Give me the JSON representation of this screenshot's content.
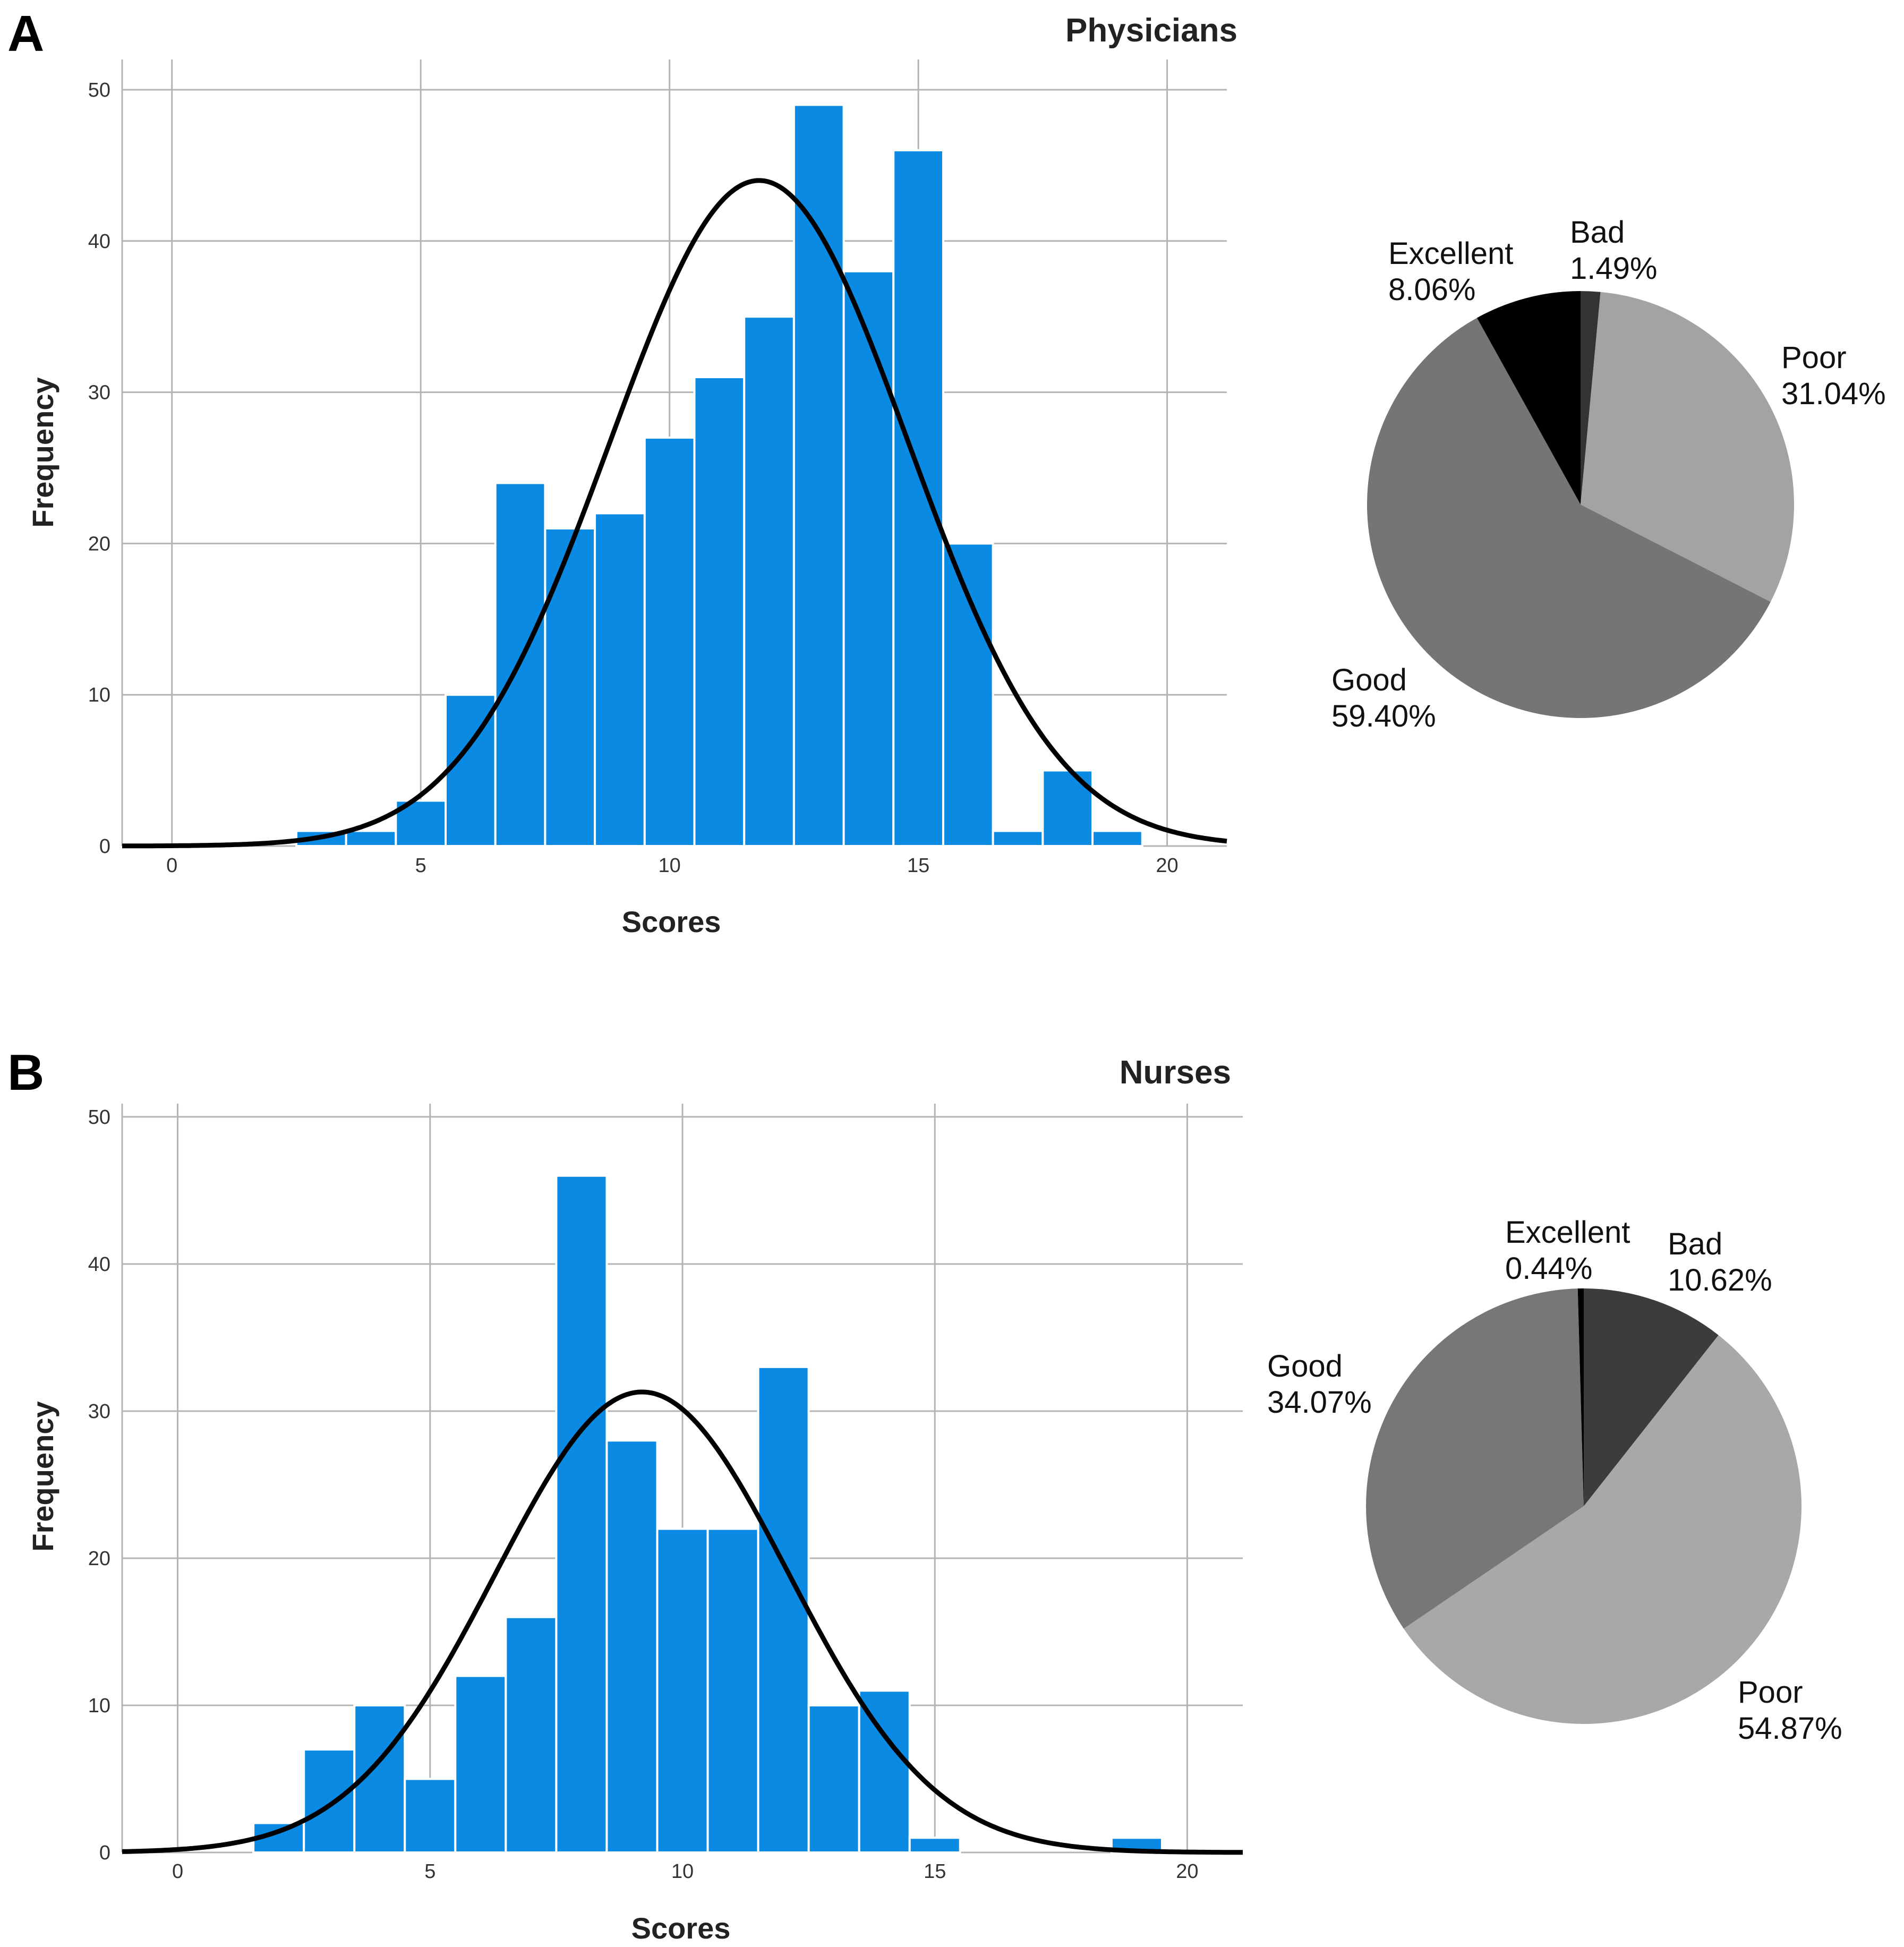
{
  "figure": {
    "panels": [
      {
        "letter": "A",
        "histogram": {
          "type": "bar",
          "title": "Physicians",
          "xlabel": "Scores",
          "ylabel": "Frequency",
          "xlim": [
            -1,
            21.2
          ],
          "ylim": [
            0,
            52
          ],
          "x_ticks": [
            0,
            5,
            10,
            15,
            20
          ],
          "y_ticks": [
            0,
            10,
            20,
            30,
            40,
            50
          ],
          "grid": true,
          "bin_width": 1,
          "bins": [
            {
              "x": 3,
              "value": 1
            },
            {
              "x": 4,
              "value": 1
            },
            {
              "x": 5,
              "value": 3
            },
            {
              "x": 6,
              "value": 10
            },
            {
              "x": 7,
              "value": 24
            },
            {
              "x": 8,
              "value": 21
            },
            {
              "x": 9,
              "value": 22
            },
            {
              "x": 10,
              "value": 27
            },
            {
              "x": 11,
              "value": 31
            },
            {
              "x": 12,
              "value": 35
            },
            {
              "x": 13,
              "value": 49
            },
            {
              "x": 14,
              "value": 38
            },
            {
              "x": 15,
              "value": 46
            },
            {
              "x": 16,
              "value": 20
            },
            {
              "x": 17,
              "value": 1
            },
            {
              "x": 18,
              "value": 5
            },
            {
              "x": 19,
              "value": 1
            }
          ],
          "normal_curve": {
            "mean": 11.8,
            "sd": 3.0,
            "peak": 44
          }
        },
        "pie": {
          "type": "pie",
          "start_angle_deg": 0,
          "slices": [
            {
              "label": "Bad",
              "percent_label": "1.49%",
              "value": 1.49,
              "color": "#333333"
            },
            {
              "label": "Poor",
              "percent_label": "31.04%",
              "value": 31.04,
              "color": "#a3a3a3"
            },
            {
              "label": "Good",
              "percent_label": "59.40%",
              "value": 59.4,
              "color": "#757575"
            },
            {
              "label": "Excellent",
              "percent_label": "8.06%",
              "value": 8.06,
              "color": "#000000"
            }
          ]
        }
      },
      {
        "letter": "B",
        "histogram": {
          "type": "bar",
          "title": "Nurses",
          "xlabel": "Scores",
          "ylabel": "Frequency",
          "xlim": [
            -1.1,
            21.1
          ],
          "ylim": [
            0,
            50.9
          ],
          "x_ticks": [
            0,
            5,
            10,
            15,
            20
          ],
          "y_ticks": [
            0,
            10,
            20,
            30,
            40,
            50
          ],
          "grid": true,
          "bin_width": 1,
          "bins": [
            {
              "x": 2,
              "value": 2
            },
            {
              "x": 3,
              "value": 7
            },
            {
              "x": 4,
              "value": 10
            },
            {
              "x": 5,
              "value": 5
            },
            {
              "x": 6,
              "value": 12
            },
            {
              "x": 7,
              "value": 16
            },
            {
              "x": 8,
              "value": 46
            },
            {
              "x": 9,
              "value": 28
            },
            {
              "x": 10,
              "value": 22
            },
            {
              "x": 11,
              "value": 22
            },
            {
              "x": 12,
              "value": 33
            },
            {
              "x": 13,
              "value": 10
            },
            {
              "x": 14,
              "value": 11
            },
            {
              "x": 15,
              "value": 1
            },
            {
              "x": 19,
              "value": 1
            }
          ],
          "normal_curve": {
            "mean": 9.2,
            "sd": 2.9,
            "peak": 31.3
          }
        },
        "pie": {
          "type": "pie",
          "start_angle_deg": 0,
          "slices": [
            {
              "label": "Bad",
              "percent_label": "10.62%",
              "value": 10.62,
              "color": "#3c3c3c"
            },
            {
              "label": "Poor",
              "percent_label": "54.87%",
              "value": 54.87,
              "color": "#a8a8a8"
            },
            {
              "label": "Good",
              "percent_label": "34.07%",
              "value": 34.07,
              "color": "#777777"
            },
            {
              "label": "Excellent",
              "percent_label": "0.44%",
              "value": 0.44,
              "color": "#000000"
            }
          ]
        }
      }
    ]
  }
}
